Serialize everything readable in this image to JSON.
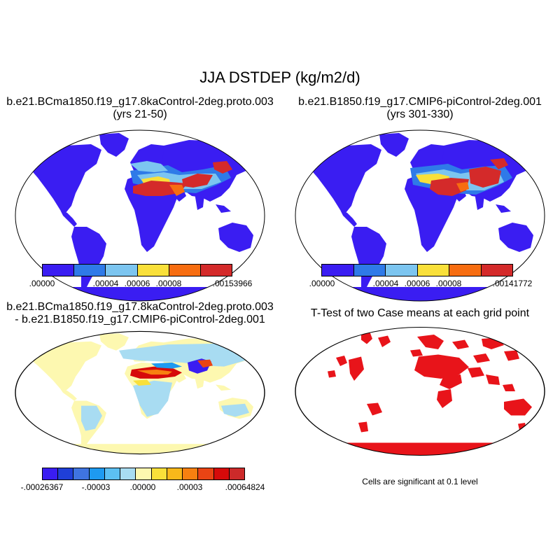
{
  "title": "JJA DSTDEP (kg/m2/d)",
  "panels": [
    {
      "title_line1": "b.e21.BCma1850.f19_g17.8kaControl-2deg.proto.003",
      "title_line2": "(yrs 21-50)",
      "colorbar": {
        "colors": [
          "#3a1df2",
          "#2f7ae8",
          "#7cc5f0",
          "#f9e03a",
          "#f76d10",
          "#d42a2a"
        ],
        "labels": [
          ".00000",
          ".00004",
          ".00006",
          ".00008",
          ".00153966"
        ]
      }
    },
    {
      "title_line1": "b.e21.B1850.f19_g17.CMIP6-piControl-2deg.001",
      "title_line2": "(yrs 301-330)",
      "colorbar": {
        "colors": [
          "#3a1df2",
          "#2f7ae8",
          "#7cc5f0",
          "#f9e03a",
          "#f76d10",
          "#d42a2a"
        ],
        "labels": [
          ".00000",
          ".00004",
          ".00006",
          ".00008",
          ".00141772"
        ]
      }
    },
    {
      "title_line1": "b.e21.BCma1850.f19_g17.8kaControl-2deg.proto.003",
      "title_line2": "- b.e21.B1850.f19_g17.CMIP6-piControl-2deg.001",
      "colorbar": {
        "colors": [
          "#3a1df2",
          "#1f3fd8",
          "#3f74e0",
          "#1e9af0",
          "#5cc0f2",
          "#a8dcf2",
          "#fdf8b0",
          "#f9e03a",
          "#f9b81a",
          "#f78010",
          "#ea4414",
          "#d60a0a",
          "#cc2a2a"
        ],
        "labels": [
          "-.00026367",
          "-.00003",
          ".00000",
          ".00003",
          ".00064824"
        ]
      }
    },
    {
      "title_line1": "T-Test of two Case means at each grid point",
      "note": "Cells are significant at 0.1 level"
    }
  ]
}
